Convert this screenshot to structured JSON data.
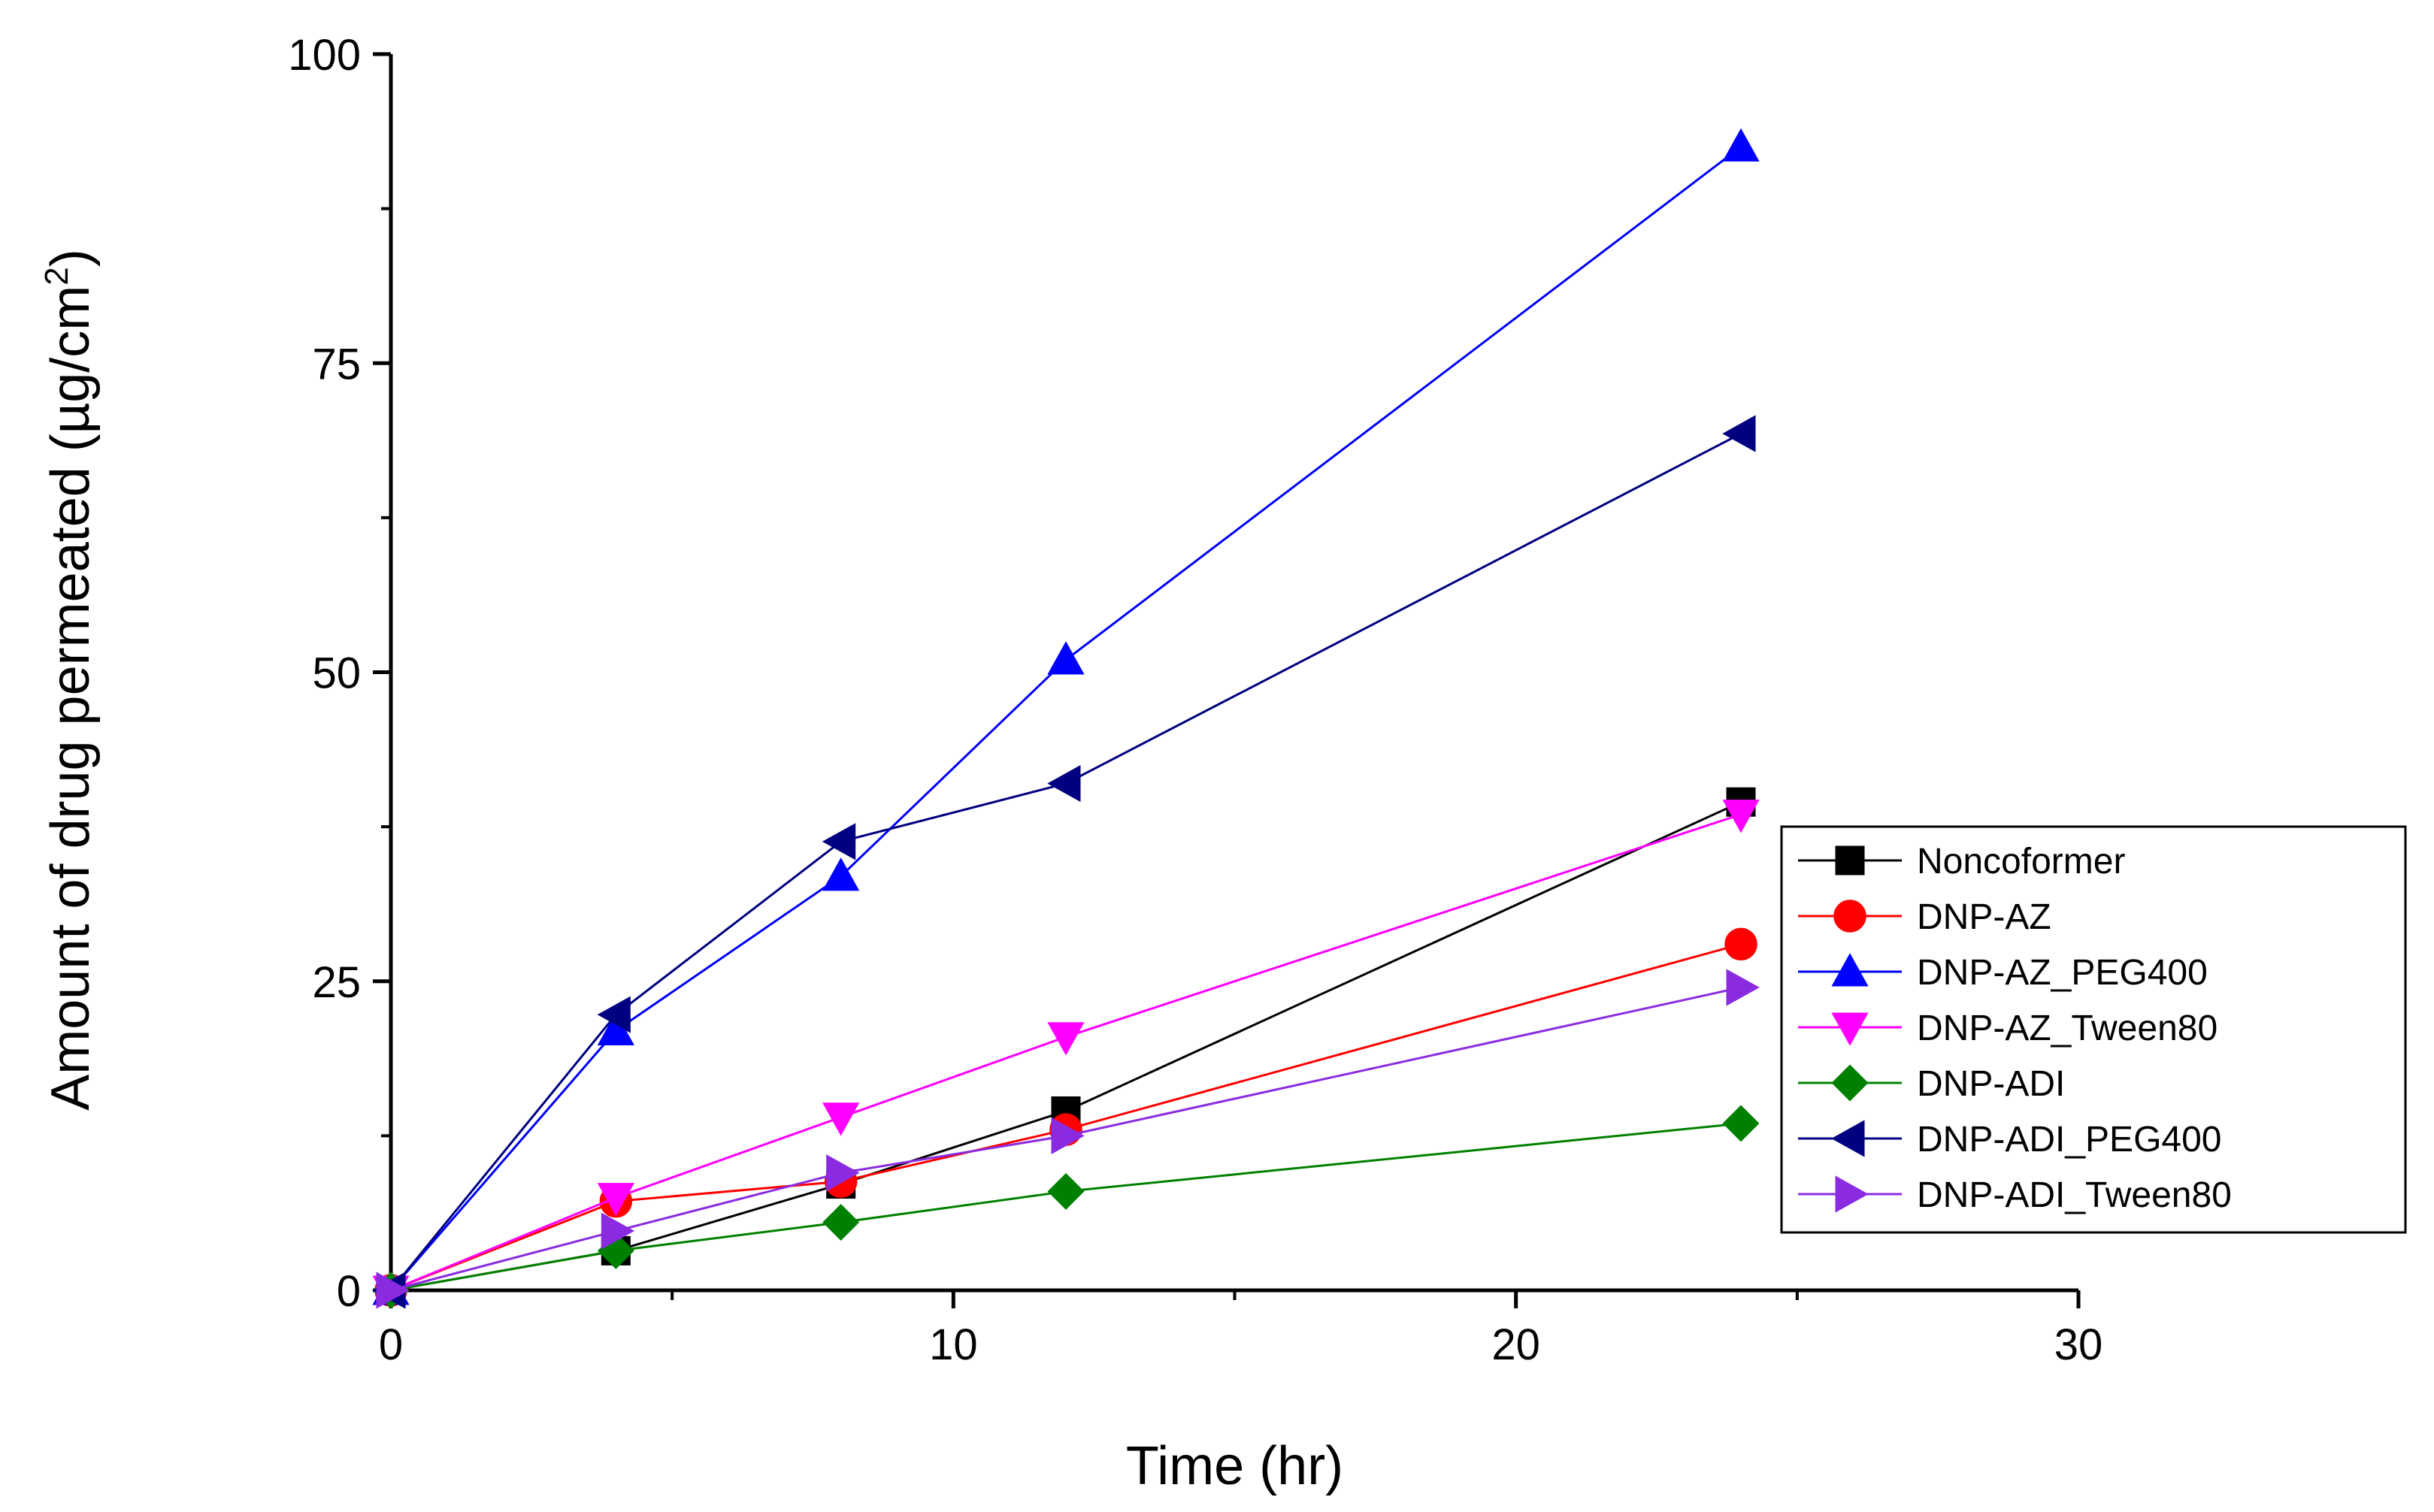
{
  "chart_data": {
    "type": "line",
    "title": "",
    "xlabel": "Time (hr)",
    "ylabel": "Amount of drug permeated (µg/cm²)",
    "ylabel_parts": {
      "main": "Amount of drug permeated (µg/cm",
      "sup": "2",
      "end": ")"
    },
    "xlim": [
      0,
      30
    ],
    "ylim": [
      0,
      100
    ],
    "xticks": [
      "0",
      "10",
      "20",
      "30"
    ],
    "yticks": [
      "0",
      "25",
      "50",
      "75",
      "100"
    ],
    "grid": false,
    "legend_position": "right",
    "series": [
      {
        "name": "Noncoformer",
        "color": "#000000",
        "marker": "square",
        "x": [
          0,
          4,
          8,
          12,
          24
        ],
        "y": [
          0,
          3.2,
          8.6,
          14.5,
          39.5
        ]
      },
      {
        "name": "DNP-AZ",
        "color": "#ff0000",
        "marker": "circle",
        "x": [
          0,
          4,
          8,
          12,
          24
        ],
        "y": [
          0,
          7.2,
          8.8,
          13.0,
          28.0
        ]
      },
      {
        "name": "DNP-AZ_PEG400",
        "color": "#0000ff",
        "marker": "triangle-up",
        "x": [
          0,
          4,
          8,
          12,
          24
        ],
        "y": [
          0,
          21.0,
          33.5,
          51.0,
          92.5
        ]
      },
      {
        "name": "DNP-AZ_Tween80",
        "color": "#ff00ff",
        "marker": "triangle-down",
        "x": [
          0,
          4,
          8,
          12,
          24
        ],
        "y": [
          0,
          7.5,
          14.0,
          20.5,
          38.5
        ]
      },
      {
        "name": "DNP-ADI",
        "color": "#008000",
        "marker": "diamond",
        "x": [
          0,
          4,
          8,
          12,
          24
        ],
        "y": [
          0,
          3.2,
          5.5,
          8.0,
          13.5
        ]
      },
      {
        "name": "DNP-ADI_PEG400",
        "color": "#000080",
        "marker": "triangle-left",
        "x": [
          0,
          4,
          8,
          12,
          24
        ],
        "y": [
          0,
          22.3,
          36.3,
          41.0,
          69.3
        ]
      },
      {
        "name": "DNP-ADI_Tween80",
        "color": "#8a2be2",
        "marker": "triangle-right",
        "x": [
          0,
          4,
          8,
          12,
          24
        ],
        "y": [
          0,
          4.8,
          9.5,
          12.5,
          24.5
        ]
      }
    ]
  }
}
